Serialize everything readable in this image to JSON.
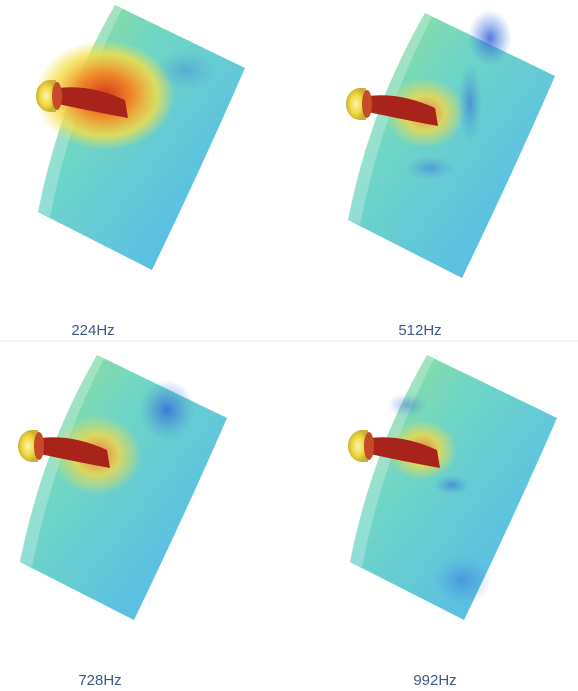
{
  "panels": [
    {
      "label": "224Hz"
    },
    {
      "label": "512Hz"
    },
    {
      "label": "728Hz"
    },
    {
      "label": "992Hz"
    }
  ]
}
